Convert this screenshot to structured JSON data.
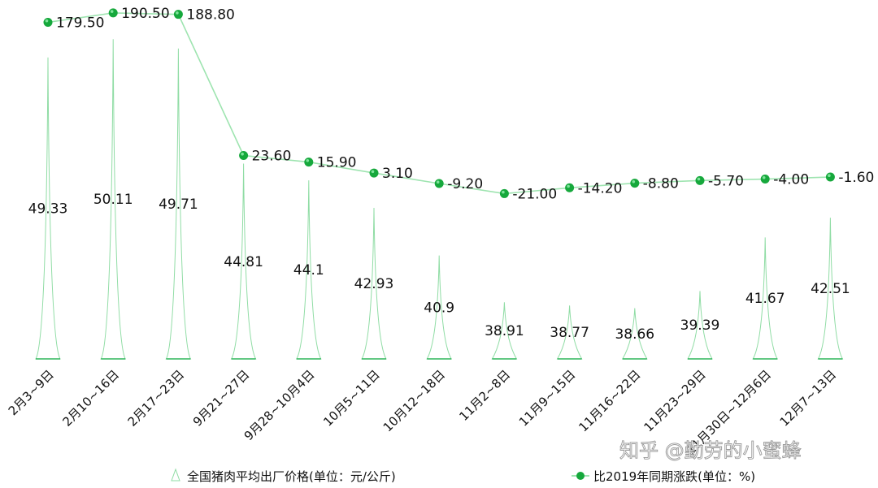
{
  "chart_data": {
    "type": "bar",
    "categories": [
      "2月3~9日",
      "2月10~16日",
      "2月17~23日",
      "9月21~27日",
      "9月28~10月4日",
      "10月5~11日",
      "10月12~18日",
      "11月2~8日",
      "11月9~15日",
      "11月16~22日",
      "11月23~29日",
      "11月30日~12月6日",
      "12月7~13日"
    ],
    "series": [
      {
        "name": "全国猪肉平均出厂价格(单位：元/公斤)",
        "type": "bar",
        "values": [
          49.33,
          50.11,
          49.71,
          44.81,
          44.1,
          42.93,
          40.9,
          38.91,
          38.77,
          38.66,
          39.39,
          41.67,
          42.51
        ],
        "value_labels": [
          "49.33",
          "50.11",
          "49.71",
          "44.81",
          "44.1",
          "42.93",
          "40.9",
          "38.91",
          "38.77",
          "38.66",
          "39.39",
          "41.67",
          "42.51"
        ]
      },
      {
        "name": "比2019年同期涨跌(单位：%)",
        "type": "line",
        "values": [
          179.5,
          190.5,
          188.8,
          23.6,
          15.9,
          3.1,
          -9.2,
          -21.0,
          -14.2,
          -8.8,
          -5.7,
          -4.0,
          -1.6
        ],
        "value_labels": [
          "179.50",
          "190.50",
          "188.80",
          "23.60",
          "15.90",
          "3.10",
          "-9.20",
          "-21.00",
          "-14.20",
          "-8.80",
          "-5.70",
          "-4.00",
          "-1.60"
        ]
      }
    ],
    "bar_axis_range": [
      36.5,
      51.5
    ],
    "line_axis_range": [
      -32,
      198
    ],
    "grid": false,
    "legend_position": "bottom",
    "colors": {
      "bar_stroke": "#8fdca4",
      "bar_base": "#2fb55a",
      "line": "#9ee4b0",
      "marker": "#16a83c",
      "marker_highlight": "#7ee39a"
    }
  },
  "watermark": "知乎 @勤劳的小蜜蜂"
}
